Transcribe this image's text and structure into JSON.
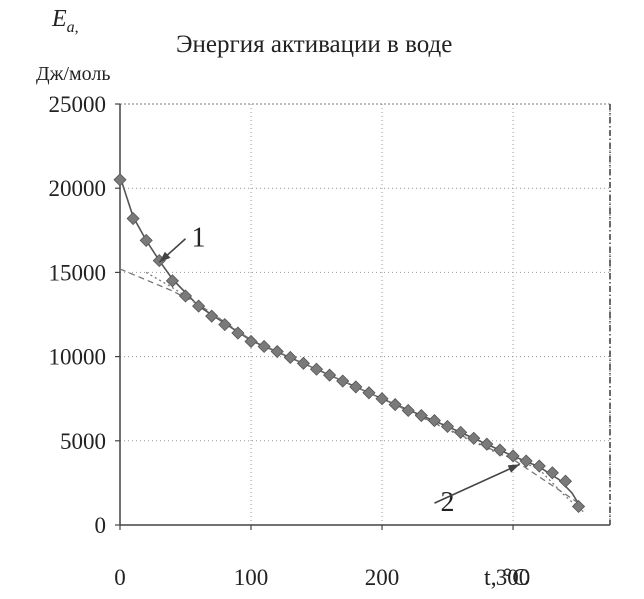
{
  "chart_data": {
    "type": "scatter",
    "title": "Энергия активации в воде",
    "ylabel_symbol": "E",
    "ylabel_subscript": "a",
    "ylabel_sep": ",",
    "ylabel_unit": "Дж/моль",
    "xlabel_var": "t,",
    "xlabel_unit": "°C",
    "xlim": [
      0,
      374
    ],
    "ylim": [
      0,
      25000
    ],
    "x_ticks": [
      0,
      100,
      200,
      300
    ],
    "y_ticks": [
      0,
      5000,
      10000,
      15000,
      20000,
      25000
    ],
    "grid": true,
    "critical_line_x": 374,
    "series": [
      {
        "marker": "diamond",
        "color": "#7a7a7a",
        "x": [
          0,
          10,
          20,
          30,
          40,
          50,
          60,
          70,
          80,
          90,
          100,
          110,
          120,
          130,
          140,
          150,
          160,
          170,
          180,
          190,
          200,
          210,
          220,
          230,
          240,
          250,
          260,
          270,
          280,
          290,
          300,
          310,
          320,
          330,
          340,
          350
        ],
        "y": [
          20500,
          18200,
          16900,
          15700,
          14500,
          13600,
          13000,
          12400,
          11900,
          11400,
          10900,
          10600,
          10300,
          9950,
          9600,
          9250,
          8900,
          8550,
          8200,
          7850,
          7500,
          7150,
          6800,
          6500,
          6200,
          5850,
          5500,
          5150,
          4800,
          4450,
          4100,
          3800,
          3500,
          3100,
          2600,
          1100
        ]
      }
    ],
    "fits": [
      {
        "style": "solid",
        "x": [
          0,
          10,
          20,
          30,
          40,
          60,
          100,
          150,
          200,
          250,
          300,
          320,
          335,
          345,
          352
        ],
        "y": [
          20700,
          18300,
          16900,
          15700,
          14600,
          13000,
          10950,
          9250,
          7500,
          5850,
          4100,
          3450,
          2700,
          1900,
          1000
        ]
      },
      {
        "style": "dashed",
        "x": [
          0,
          40,
          60,
          100,
          200,
          300,
          350
        ],
        "y": [
          15200,
          13900,
          13100,
          11000,
          7500,
          3900,
          1300
        ]
      },
      {
        "style": "dotted",
        "x": [
          20,
          40,
          60,
          100,
          200,
          290,
          300,
          320,
          340,
          355
        ],
        "y": [
          15000,
          14100,
          13100,
          11000,
          7500,
          4200,
          4000,
          3300,
          1700,
          700
        ]
      }
    ],
    "annotations": [
      {
        "label": "1",
        "text_x": 50,
        "text_y": 17000,
        "arrow_to": [
          30,
          15600
        ]
      },
      {
        "label": "2",
        "text_x": 240,
        "text_y": 1300,
        "arrow_to": [
          305,
          3600
        ]
      }
    ]
  }
}
